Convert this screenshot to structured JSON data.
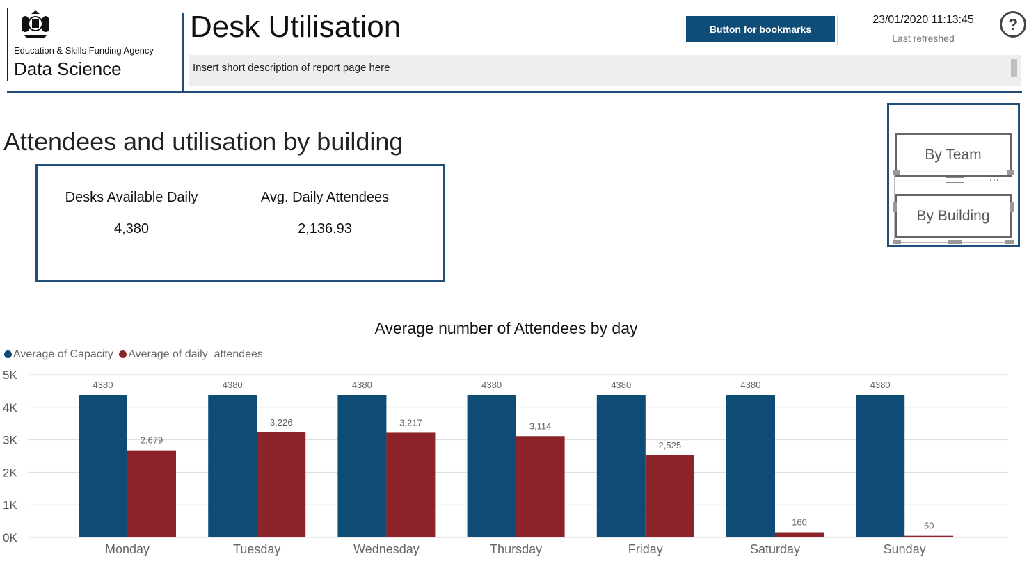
{
  "header": {
    "agency": "Education & Skills Funding Agency",
    "team": "Data Science",
    "title": "Desk Utilisation",
    "description": "Insert short description of report page here",
    "bookmark_button": "Button for bookmarks",
    "refresh_time": "23/01/2020 11:13:45",
    "refresh_label": "Last refreshed",
    "help_symbol": "?"
  },
  "section": {
    "title": "Attendees and utilisation by building"
  },
  "kpis": [
    {
      "label": "Desks Available Daily",
      "value": "4,380"
    },
    {
      "label": "Avg. Daily Attendees",
      "value": "2,136.93"
    }
  ],
  "nav": {
    "by_team": "By Team",
    "by_building": "By Building",
    "more": "..."
  },
  "colors": {
    "capacity": "#0f4c75",
    "attendees": "#8b2329",
    "accent": "#1f4e79"
  },
  "chart_data": {
    "type": "bar",
    "title": "Average number of Attendees by day",
    "categories": [
      "Monday",
      "Tuesday",
      "Wednesday",
      "Thursday",
      "Friday",
      "Saturday",
      "Sunday"
    ],
    "series": [
      {
        "name": "Average of Capacity",
        "values": [
          4380,
          4380,
          4380,
          4380,
          4380,
          4380,
          4380
        ],
        "labels": [
          "4380",
          "4380",
          "4380",
          "4380",
          "4380",
          "4380",
          "4380"
        ]
      },
      {
        "name": "Average of daily_attendees",
        "values": [
          2679,
          3226,
          3217,
          3114,
          2525,
          160,
          50
        ],
        "labels": [
          "2,679",
          "3,226",
          "3,217",
          "3,114",
          "2,525",
          "160",
          "50"
        ]
      }
    ],
    "ylim": [
      0,
      5000
    ],
    "yticks": [
      {
        "value": 0,
        "label": "0K"
      },
      {
        "value": 1000,
        "label": "1K"
      },
      {
        "value": 2000,
        "label": "2K"
      },
      {
        "value": 3000,
        "label": "3K"
      },
      {
        "value": 4000,
        "label": "4K"
      },
      {
        "value": 5000,
        "label": "5K"
      }
    ],
    "grid": true,
    "legend": "top-left"
  }
}
